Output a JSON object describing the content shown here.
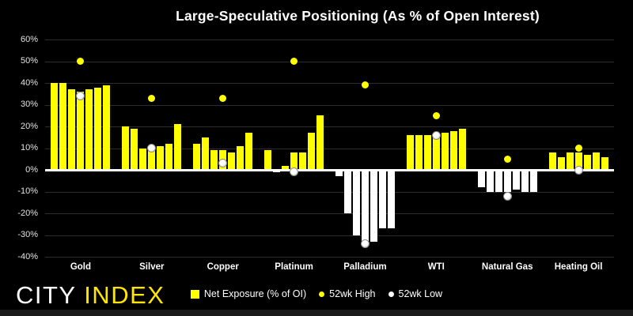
{
  "title": "Large-Speculative Positioning (As % of Open Interest)",
  "logo": {
    "city": "CITY",
    "index": "INDEX"
  },
  "colors": {
    "background": "#000000",
    "bar_positive": "#ffff00",
    "bar_negative": "#ffffff",
    "high_marker": "#ffff00",
    "low_marker": "#ffffff",
    "gridline": "#2d2d2d",
    "zero_axis": "#ffffff",
    "text": "#ffffff",
    "logo_accent": "#ffe600"
  },
  "chart_data": {
    "type": "bar",
    "title": "Large-Speculative Positioning (As % of Open Interest)",
    "ylabel": "",
    "ylim": [
      -40,
      60
    ],
    "grid": true,
    "legend_position": "bottom",
    "yticks": [
      {
        "value": 60,
        "label": "60%"
      },
      {
        "value": 50,
        "label": "50%"
      },
      {
        "value": 40,
        "label": "40%"
      },
      {
        "value": 30,
        "label": "30%"
      },
      {
        "value": 20,
        "label": "20%"
      },
      {
        "value": 10,
        "label": "10%"
      },
      {
        "value": 0,
        "label": "0%"
      },
      {
        "value": -10,
        "label": "-10%"
      },
      {
        "value": -20,
        "label": "-20%"
      },
      {
        "value": -30,
        "label": "-30%"
      },
      {
        "value": -40,
        "label": "-40%"
      }
    ],
    "categories": [
      "Gold",
      "Silver",
      "Copper",
      "Platinum",
      "Palladium",
      "WTI",
      "Natural Gas",
      "Heating Oil"
    ],
    "series": [
      {
        "name": "Net Exposure (% of OI)",
        "type": "bar",
        "color_positive": "#ffff00",
        "color_negative": "#ffffff",
        "values": [
          [
            40,
            40,
            37,
            36,
            37,
            38,
            39
          ],
          [
            20,
            19,
            10,
            11,
            11,
            12,
            21
          ],
          [
            12,
            15,
            9,
            9,
            8,
            11,
            17
          ],
          [
            9,
            -1,
            2,
            8,
            8,
            17,
            25
          ],
          [
            -3,
            -20,
            -30,
            -34,
            -33,
            -27,
            -27
          ],
          [
            16,
            16,
            16,
            16,
            17,
            18,
            19
          ],
          [
            -8,
            -10,
            -10,
            -10,
            -9,
            -10,
            -10
          ],
          [
            8,
            6,
            8,
            8,
            7,
            8,
            6
          ]
        ]
      },
      {
        "name": "52wk High",
        "type": "point",
        "color": "#ffff00",
        "values": [
          50,
          33,
          33,
          50,
          39,
          25,
          5,
          10
        ]
      },
      {
        "name": "52wk Low",
        "type": "point",
        "color": "#ffffff",
        "values": [
          34,
          10,
          3,
          -1,
          -34,
          16,
          -12,
          0
        ]
      }
    ]
  }
}
